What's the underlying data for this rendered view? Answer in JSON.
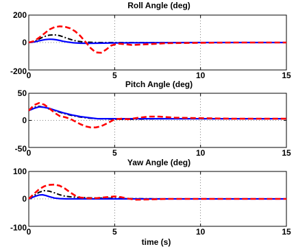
{
  "chart_data": [
    {
      "type": "line",
      "title": "Roll Angle (deg)",
      "xlabel": "",
      "ylabel": "",
      "xlim": [
        0,
        15
      ],
      "ylim": [
        -200,
        200
      ],
      "xticks": [
        0,
        5,
        10,
        15
      ],
      "yticks": [
        -200,
        0,
        200
      ],
      "grid": "dotted",
      "series": [
        {
          "color": "#000000",
          "style": "dashdot",
          "x": [
            0,
            0.2,
            0.4,
            0.6,
            0.8,
            1.0,
            1.2,
            1.4,
            1.6,
            1.8,
            2.0,
            2.2,
            2.5,
            2.8,
            3.2,
            3.6,
            4.0,
            5.0,
            6.0,
            8.0,
            10.0,
            12.0,
            15.0
          ],
          "y": [
            0,
            3,
            12,
            25,
            38,
            48,
            54,
            56,
            55,
            50,
            42,
            32,
            20,
            10,
            4,
            2,
            0,
            0,
            0,
            0,
            0,
            0,
            0
          ]
        },
        {
          "color": "#0000ff",
          "style": "solid",
          "x": [
            0,
            0.2,
            0.4,
            0.6,
            0.8,
            1.0,
            1.2,
            1.4,
            1.6,
            1.8,
            2.0,
            2.3,
            2.6,
            3.0,
            3.5,
            4.0,
            5.0,
            6.0,
            8.0,
            10.0,
            12.0,
            15.0
          ],
          "y": [
            0,
            2,
            6,
            12,
            18,
            22,
            24,
            23,
            20,
            15,
            9,
            3,
            -2,
            -5,
            -6,
            -5,
            -3,
            -2,
            -1,
            0,
            0,
            0
          ]
        },
        {
          "color": "#ff0000",
          "style": "dashed",
          "x": [
            0,
            0.3,
            0.6,
            0.9,
            1.2,
            1.5,
            1.8,
            2.1,
            2.4,
            2.7,
            3.0,
            3.3,
            3.6,
            3.9,
            4.2,
            4.5,
            4.8,
            5.2,
            5.6,
            6.0,
            7.0,
            8.0,
            10.0,
            12.0,
            15.0
          ],
          "y": [
            0,
            10,
            35,
            65,
            95,
            112,
            118,
            115,
            104,
            82,
            48,
            5,
            -40,
            -72,
            -75,
            -52,
            -22,
            -8,
            -12,
            -18,
            -12,
            -5,
            -2,
            0,
            0
          ]
        }
      ]
    },
    {
      "type": "line",
      "title": "Pitch Angle (deg)",
      "xlabel": "",
      "ylabel": "",
      "xlim": [
        0,
        15
      ],
      "ylim": [
        -50,
        50
      ],
      "xticks": [
        0,
        5,
        10,
        15
      ],
      "yticks": [
        -50,
        0,
        50
      ],
      "grid": "dotted",
      "series": [
        {
          "color": "#000000",
          "style": "dashdot",
          "x": [
            0,
            0.3,
            0.6,
            0.9,
            1.2,
            1.5,
            2.0,
            2.5,
            3.0,
            3.5,
            4.0,
            5.0,
            6.0,
            8.0,
            10.0,
            12.0,
            15.0
          ],
          "y": [
            18,
            24,
            26,
            24,
            21,
            18,
            13,
            9,
            6,
            4,
            3,
            2,
            2,
            3,
            3,
            3,
            3
          ]
        },
        {
          "color": "#0000ff",
          "style": "solid",
          "x": [
            0,
            0.3,
            0.6,
            0.9,
            1.2,
            1.5,
            2.0,
            2.5,
            3.0,
            3.5,
            4.0,
            5.0,
            6.0,
            8.0,
            10.0,
            12.0,
            15.0
          ],
          "y": [
            18,
            22,
            25,
            24,
            22,
            19,
            14,
            10,
            7,
            5,
            3,
            3,
            3,
            3,
            3,
            3,
            3
          ]
        },
        {
          "color": "#ff0000",
          "style": "dashed",
          "x": [
            0,
            0.3,
            0.6,
            0.9,
            1.2,
            1.5,
            1.8,
            2.1,
            2.4,
            2.7,
            3.0,
            3.3,
            3.6,
            3.9,
            4.2,
            4.6,
            5.0,
            5.4,
            5.8,
            6.4,
            7.0,
            7.6,
            8.5,
            10.0,
            12.0,
            15.0
          ],
          "y": [
            18,
            28,
            32,
            29,
            22,
            14,
            8,
            6,
            3,
            -2,
            -7,
            -11,
            -13,
            -13,
            -11,
            -5,
            2,
            3,
            2,
            5,
            7,
            7,
            5,
            4,
            3,
            3
          ]
        }
      ]
    },
    {
      "type": "line",
      "title": "Yaw Angle (deg)",
      "xlabel": "time (s)",
      "ylabel": "",
      "xlim": [
        0,
        15
      ],
      "ylim": [
        -100,
        100
      ],
      "xticks": [
        0,
        5,
        10,
        15
      ],
      "yticks": [
        -100,
        0,
        100
      ],
      "grid": "dotted",
      "series": [
        {
          "color": "#000000",
          "style": "dashdot",
          "x": [
            0,
            0.3,
            0.6,
            0.9,
            1.2,
            1.5,
            1.8,
            2.1,
            2.5,
            3.0,
            4.0,
            5.0,
            6.0,
            8.0,
            10.0,
            12.0,
            15.0
          ],
          "y": [
            0,
            12,
            24,
            30,
            28,
            22,
            15,
            10,
            7,
            5,
            3,
            2,
            1,
            0,
            0,
            0,
            0
          ]
        },
        {
          "color": "#0000ff",
          "style": "solid",
          "x": [
            0,
            0.2,
            0.4,
            0.6,
            0.8,
            1.0,
            1.2,
            1.5,
            1.8,
            2.2,
            3.0,
            4.0,
            5.0,
            6.0,
            8.0,
            10.0,
            12.0,
            15.0
          ],
          "y": [
            0,
            5,
            10,
            14,
            15,
            12,
            8,
            3,
            1,
            0,
            0,
            0,
            0,
            0,
            0,
            0,
            0,
            0
          ]
        },
        {
          "color": "#ff0000",
          "style": "dashed",
          "x": [
            0,
            0.3,
            0.6,
            0.9,
            1.2,
            1.5,
            1.8,
            2.1,
            2.4,
            2.7,
            3.0,
            3.5,
            4.0,
            4.5,
            5.0,
            5.4,
            5.8,
            6.2,
            7.0,
            8.0,
            10.0,
            12.0,
            15.0
          ],
          "y": [
            0,
            18,
            35,
            46,
            51,
            52,
            48,
            38,
            24,
            12,
            5,
            2,
            3,
            6,
            9,
            6,
            1,
            -3,
            -2,
            0,
            0,
            0,
            0
          ]
        }
      ]
    }
  ]
}
